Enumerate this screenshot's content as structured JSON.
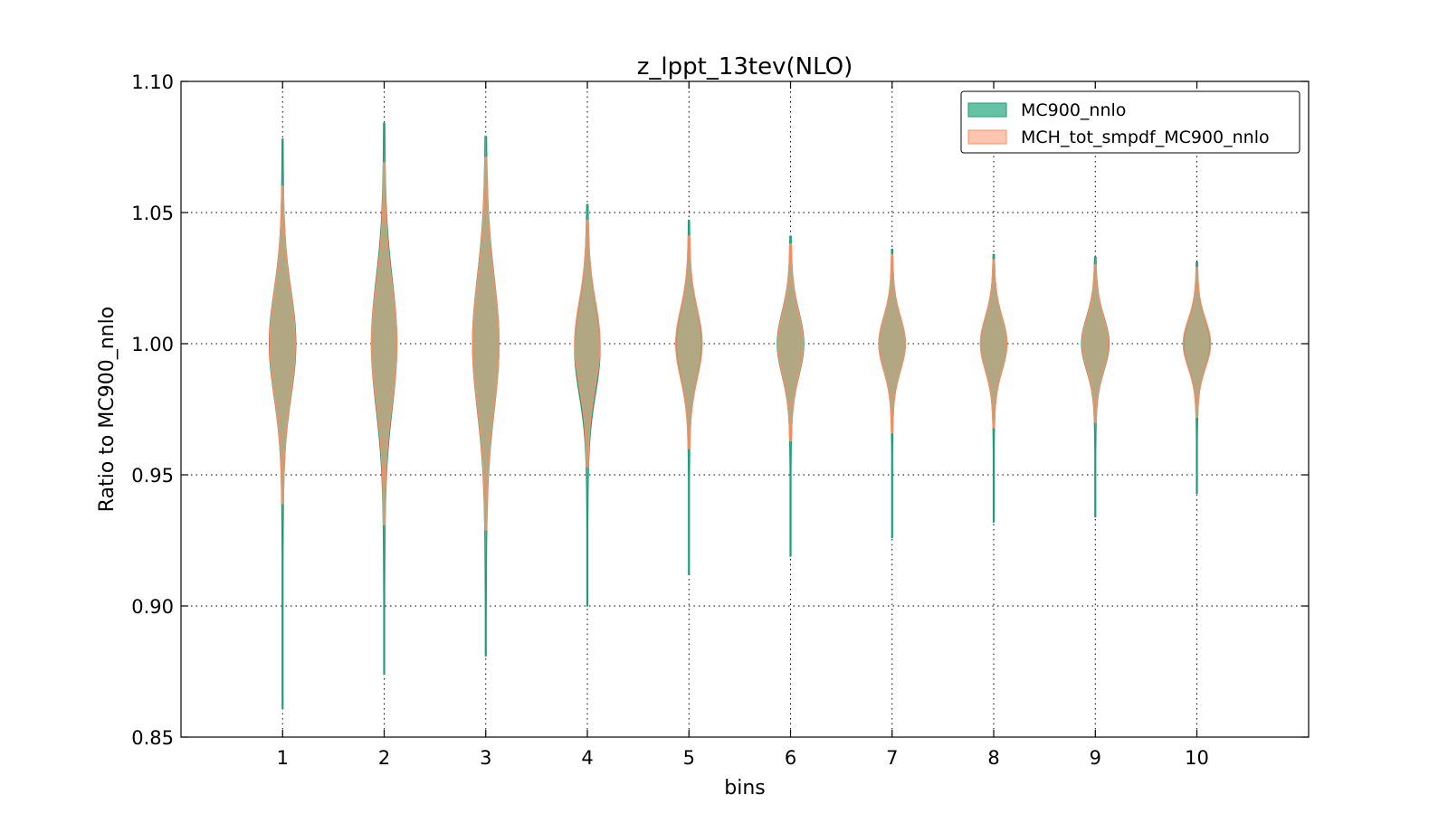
{
  "chart_data": {
    "type": "violin",
    "title": "z_lppt_13tev(NLO)",
    "xlabel": "bins",
    "ylabel": "Ratio to MC900_nnlo",
    "ylim": [
      0.85,
      1.1
    ],
    "xlim": [
      0,
      11.1
    ],
    "yticks": [
      "0.85",
      "0.90",
      "0.95",
      "1.00",
      "1.05",
      "1.10"
    ],
    "categories": [
      "1",
      "2",
      "3",
      "4",
      "5",
      "6",
      "7",
      "8",
      "9",
      "10"
    ],
    "grid": true,
    "legend_position": "top-right",
    "series": [
      {
        "name": "MC900_nnlo",
        "color": "#66c2a5",
        "edge": "#1b9e77",
        "alpha": 1.0,
        "min": [
          0.861,
          0.874,
          0.881,
          0.9,
          0.912,
          0.919,
          0.926,
          0.932,
          0.934,
          0.943
        ],
        "max": [
          1.078,
          1.084,
          1.079,
          1.053,
          1.047,
          1.041,
          1.036,
          1.034,
          1.033,
          1.031
        ],
        "center": [
          1.0,
          1.0,
          1.0,
          0.998,
          1.0,
          1.0,
          1.0,
          1.0,
          1.0,
          1.0
        ],
        "width": [
          0.26,
          0.25,
          0.26,
          0.25,
          0.25,
          0.26,
          0.26,
          0.26,
          0.27,
          0.26
        ],
        "spread": [
          0.02,
          0.024,
          0.025,
          0.017,
          0.013,
          0.012,
          0.01,
          0.01,
          0.01,
          0.009
        ]
      },
      {
        "name": "MCH_tot_smpdf_MC900_nnlo",
        "color": "#fc8d62",
        "edge": "#fc8d62",
        "alpha": 0.5,
        "min": [
          0.939,
          0.931,
          0.929,
          0.953,
          0.96,
          0.963,
          0.966,
          0.968,
          0.97,
          0.972
        ],
        "max": [
          1.06,
          1.069,
          1.071,
          1.047,
          1.041,
          1.038,
          1.034,
          1.032,
          1.03,
          1.029
        ],
        "center": [
          1.0,
          1.0,
          1.0,
          1.0,
          1.0,
          1.0,
          1.0,
          1.0,
          1.0,
          1.0
        ],
        "width": [
          0.25,
          0.25,
          0.26,
          0.25,
          0.26,
          0.25,
          0.26,
          0.26,
          0.26,
          0.27
        ],
        "spread": [
          0.02,
          0.022,
          0.024,
          0.016,
          0.013,
          0.012,
          0.01,
          0.01,
          0.01,
          0.009
        ]
      }
    ]
  }
}
